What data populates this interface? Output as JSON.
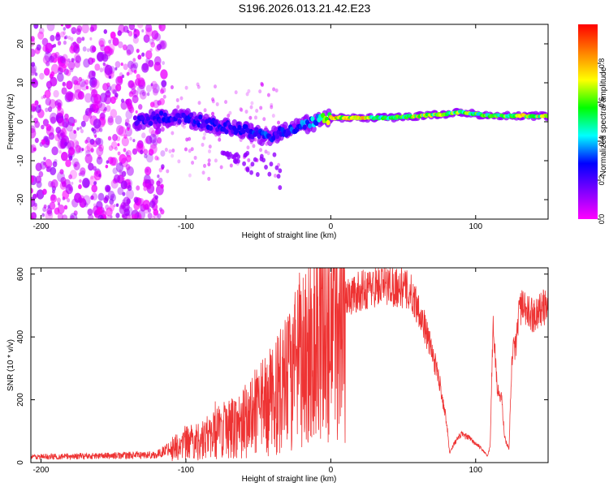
{
  "figure_title": "S196.2026.013.21.42.E23",
  "chart_data": [
    {
      "type": "heatmap",
      "title": "S196.2026.013.21.42.E23",
      "xlabel": "Height of straight line (km)",
      "ylabel": "Frequency (Hz)",
      "xlim": [
        -207,
        150
      ],
      "ylim": [
        -25,
        25
      ],
      "xticks": [
        -200,
        -100,
        0,
        100
      ],
      "yticks": [
        -20,
        -10,
        0,
        10,
        20
      ],
      "colorbar": {
        "label": "Normalized spectral amplitude",
        "range": [
          0,
          1
        ],
        "ticks": [
          "0.0",
          "0.2",
          "0.4",
          "0.6",
          "0.8"
        ],
        "colors": [
          "#ff00ff",
          "#8000ff",
          "#0000ff",
          "#00ffff",
          "#00ff00",
          "#ffff00",
          "#ff8000",
          "#ff0000"
        ]
      },
      "ridge": {
        "description_points_x": [
          -135,
          -120,
          -100,
          -80,
          -60,
          -45,
          -35,
          -20,
          -10,
          0,
          20,
          40,
          60,
          80,
          90,
          110,
          130,
          150
        ],
        "frequency_hz": [
          0,
          1,
          1,
          -1,
          -2,
          -4,
          -3,
          -1,
          0,
          1,
          1,
          1,
          1.5,
          2,
          2.5,
          1.5,
          1.5,
          1.5
        ],
        "normalized_amplitude": [
          0.25,
          0.3,
          0.3,
          0.3,
          0.3,
          0.35,
          0.3,
          0.4,
          0.5,
          0.85,
          0.9,
          0.6,
          0.85,
          0.7,
          0.75,
          0.7,
          0.8,
          0.8
        ]
      },
      "noise_region_x": [
        -207,
        -115
      ]
    },
    {
      "type": "line",
      "xlabel": "Height of straight line (km)",
      "ylabel": "SNR (10 * v/v)",
      "xlim": [
        -207,
        150
      ],
      "ylim": [
        0,
        620
      ],
      "xticks": [
        -200,
        -100,
        0,
        100
      ],
      "yticks": [
        0,
        200,
        400,
        600
      ],
      "series": [
        {
          "name": "SNR",
          "color": "#ee3333",
          "x": [
            -207,
            -180,
            -150,
            -120,
            -112,
            -100,
            -90,
            -80,
            -70,
            -60,
            -50,
            -40,
            -30,
            -20,
            -10,
            0,
            10,
            20,
            30,
            40,
            50,
            55,
            60,
            65,
            70,
            75,
            80,
            82,
            85,
            90,
            95,
            100,
            105,
            108,
            110,
            112,
            115,
            118,
            120,
            123,
            125,
            128,
            130,
            135,
            140,
            145,
            150
          ],
          "y": [
            18,
            20,
            22,
            25,
            45,
            60,
            70,
            90,
            110,
            130,
            160,
            200,
            250,
            320,
            400,
            470,
            520,
            545,
            560,
            565,
            555,
            540,
            500,
            430,
            350,
            260,
            130,
            30,
            60,
            90,
            80,
            60,
            40,
            20,
            50,
            450,
            230,
            200,
            80,
            40,
            340,
            380,
            500,
            480,
            470,
            490,
            500
          ]
        }
      ]
    }
  ]
}
